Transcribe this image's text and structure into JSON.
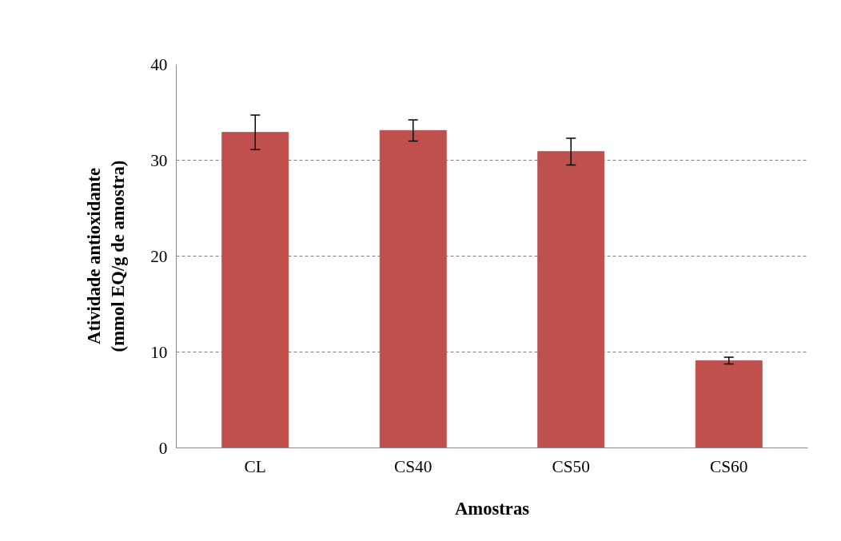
{
  "chart_data": {
    "type": "bar",
    "xlabel": "Amostras",
    "ylabel": "Atividade antioxidante\n(mmol EQ/g de amostra)",
    "categories": [
      "CL",
      "CS40",
      "CS50",
      "CS60"
    ],
    "values": [
      32.9,
      33.1,
      30.9,
      9.1
    ],
    "errors": [
      1.8,
      1.1,
      1.4,
      0.35
    ],
    "color": "#c0504d",
    "ylim": [
      0,
      40
    ],
    "yticks": [
      0,
      10,
      20,
      30,
      40
    ],
    "grid": "y"
  }
}
